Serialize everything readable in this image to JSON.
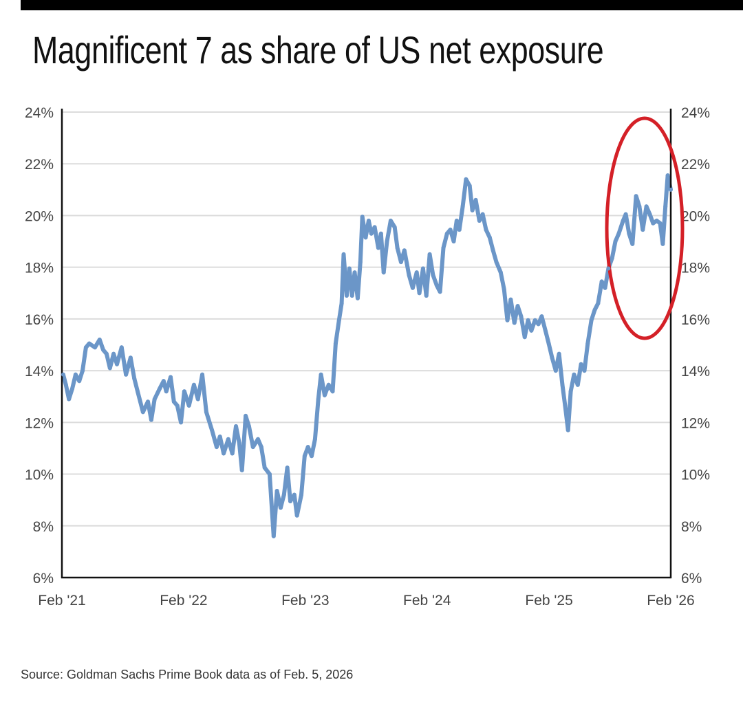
{
  "chart_data": {
    "type": "line",
    "title": "Magnificent 7 as share of US net exposure",
    "source": "Source: Goldman Sachs Prime Book data as of Feb. 5, 2026",
    "xlabel": "",
    "ylabel": "",
    "xlim": [
      "2021-02-05",
      "2026-02-05"
    ],
    "ylim": [
      6,
      24
    ],
    "y_ticks": [
      {
        "value": 24,
        "label": "24%"
      },
      {
        "value": 22,
        "label": "22%"
      },
      {
        "value": 20,
        "label": "20%"
      },
      {
        "value": 18,
        "label": "18%"
      },
      {
        "value": 16,
        "label": "16%"
      },
      {
        "value": 14,
        "label": "14%"
      },
      {
        "value": 12,
        "label": "12%"
      },
      {
        "value": 10,
        "label": "10%"
      },
      {
        "value": 8,
        "label": "8%"
      },
      {
        "value": 6,
        "label": "6%"
      }
    ],
    "x_ticks": [
      {
        "date": "2021-02-05",
        "label": "Feb '21"
      },
      {
        "date": "2022-02-05",
        "label": "Feb '22"
      },
      {
        "date": "2023-02-05",
        "label": "Feb '23"
      },
      {
        "date": "2024-02-05",
        "label": "Feb '24"
      },
      {
        "date": "2025-02-05",
        "label": "Feb '25"
      },
      {
        "date": "2026-02-05",
        "label": "Feb '26"
      }
    ],
    "grid": true,
    "dual_y_axis": true,
    "line_color": "#6b96c8",
    "annotation": {
      "shape": "ellipse",
      "color": "#d42027",
      "highlights": "recent highs late 2025 to Feb 2026"
    },
    "series": [
      {
        "values": [
          [
            "2021-02-09",
            13.85
          ],
          [
            "2021-02-17",
            13.45
          ],
          [
            "2021-02-26",
            12.9
          ],
          [
            "2021-03-08",
            13.3
          ],
          [
            "2021-03-18",
            13.85
          ],
          [
            "2021-03-29",
            13.6
          ],
          [
            "2021-04-08",
            14.0
          ],
          [
            "2021-04-18",
            14.9
          ],
          [
            "2021-04-28",
            15.05
          ],
          [
            "2021-05-15",
            14.9
          ],
          [
            "2021-05-29",
            15.2
          ],
          [
            "2021-06-09",
            14.8
          ],
          [
            "2021-06-19",
            14.65
          ],
          [
            "2021-06-29",
            14.1
          ],
          [
            "2021-07-10",
            14.65
          ],
          [
            "2021-07-20",
            14.25
          ],
          [
            "2021-08-03",
            14.9
          ],
          [
            "2021-08-16",
            13.85
          ],
          [
            "2021-08-30",
            14.5
          ],
          [
            "2021-09-10",
            13.7
          ],
          [
            "2021-09-20",
            13.2
          ],
          [
            "2021-10-06",
            12.4
          ],
          [
            "2021-10-21",
            12.8
          ],
          [
            "2021-10-31",
            12.1
          ],
          [
            "2021-11-10",
            12.9
          ],
          [
            "2021-11-25",
            13.3
          ],
          [
            "2021-12-07",
            13.6
          ],
          [
            "2021-12-15",
            13.2
          ],
          [
            "2021-12-28",
            13.75
          ],
          [
            "2022-01-07",
            12.8
          ],
          [
            "2022-01-17",
            12.65
          ],
          [
            "2022-01-28",
            12.0
          ],
          [
            "2022-02-07",
            13.2
          ],
          [
            "2022-02-21",
            12.65
          ],
          [
            "2022-03-08",
            13.45
          ],
          [
            "2022-03-20",
            12.9
          ],
          [
            "2022-04-02",
            13.85
          ],
          [
            "2022-04-14",
            12.4
          ],
          [
            "2022-05-01",
            11.7
          ],
          [
            "2022-05-15",
            11.05
          ],
          [
            "2022-05-25",
            11.45
          ],
          [
            "2022-06-05",
            10.8
          ],
          [
            "2022-06-19",
            11.35
          ],
          [
            "2022-07-01",
            10.8
          ],
          [
            "2022-07-12",
            11.85
          ],
          [
            "2022-07-22",
            11.2
          ],
          [
            "2022-07-30",
            10.15
          ],
          [
            "2022-08-10",
            12.25
          ],
          [
            "2022-08-20",
            11.85
          ],
          [
            "2022-09-01",
            11.05
          ],
          [
            "2022-09-16",
            11.35
          ],
          [
            "2022-09-26",
            11.05
          ],
          [
            "2022-10-06",
            10.25
          ],
          [
            "2022-10-21",
            10.0
          ],
          [
            "2022-11-02",
            7.6
          ],
          [
            "2022-11-12",
            9.35
          ],
          [
            "2022-11-23",
            8.7
          ],
          [
            "2022-12-03",
            9.2
          ],
          [
            "2022-12-13",
            10.25
          ],
          [
            "2022-12-22",
            8.95
          ],
          [
            "2023-01-03",
            9.2
          ],
          [
            "2023-01-11",
            8.4
          ],
          [
            "2023-01-24",
            9.2
          ],
          [
            "2023-02-03",
            10.7
          ],
          [
            "2023-02-13",
            11.05
          ],
          [
            "2023-02-24",
            10.7
          ],
          [
            "2023-03-06",
            11.35
          ],
          [
            "2023-03-16",
            12.9
          ],
          [
            "2023-03-24",
            13.85
          ],
          [
            "2023-04-04",
            13.05
          ],
          [
            "2023-04-16",
            13.45
          ],
          [
            "2023-04-28",
            13.2
          ],
          [
            "2023-05-07",
            15.05
          ],
          [
            "2023-05-17",
            15.95
          ],
          [
            "2023-05-25",
            16.6
          ],
          [
            "2023-05-31",
            18.5
          ],
          [
            "2023-06-09",
            16.9
          ],
          [
            "2023-06-17",
            17.95
          ],
          [
            "2023-06-25",
            16.9
          ],
          [
            "2023-07-03",
            17.8
          ],
          [
            "2023-07-12",
            16.8
          ],
          [
            "2023-07-20",
            18.2
          ],
          [
            "2023-07-26",
            19.95
          ],
          [
            "2023-08-05",
            19.15
          ],
          [
            "2023-08-14",
            19.8
          ],
          [
            "2023-08-22",
            19.3
          ],
          [
            "2023-09-01",
            19.55
          ],
          [
            "2023-09-12",
            18.75
          ],
          [
            "2023-09-20",
            19.3
          ],
          [
            "2023-09-28",
            17.8
          ],
          [
            "2023-10-08",
            19.0
          ],
          [
            "2023-10-19",
            19.8
          ],
          [
            "2023-10-31",
            19.55
          ],
          [
            "2023-11-08",
            18.75
          ],
          [
            "2023-11-19",
            18.2
          ],
          [
            "2023-11-29",
            18.65
          ],
          [
            "2023-12-13",
            17.7
          ],
          [
            "2023-12-24",
            17.2
          ],
          [
            "2024-01-05",
            17.8
          ],
          [
            "2024-01-13",
            17.0
          ],
          [
            "2024-01-24",
            17.95
          ],
          [
            "2024-02-03",
            16.9
          ],
          [
            "2024-02-13",
            18.5
          ],
          [
            "2024-02-23",
            17.7
          ],
          [
            "2024-03-05",
            17.3
          ],
          [
            "2024-03-15",
            17.05
          ],
          [
            "2024-03-25",
            18.75
          ],
          [
            "2024-04-05",
            19.3
          ],
          [
            "2024-04-15",
            19.45
          ],
          [
            "2024-04-25",
            19.0
          ],
          [
            "2024-05-04",
            19.8
          ],
          [
            "2024-05-12",
            19.45
          ],
          [
            "2024-05-22",
            20.35
          ],
          [
            "2024-06-01",
            21.4
          ],
          [
            "2024-06-12",
            21.15
          ],
          [
            "2024-06-20",
            20.2
          ],
          [
            "2024-06-30",
            20.6
          ],
          [
            "2024-07-11",
            19.8
          ],
          [
            "2024-07-21",
            20.05
          ],
          [
            "2024-07-31",
            19.45
          ],
          [
            "2024-08-11",
            19.15
          ],
          [
            "2024-08-21",
            18.65
          ],
          [
            "2024-08-31",
            18.2
          ],
          [
            "2024-09-13",
            17.8
          ],
          [
            "2024-09-23",
            17.15
          ],
          [
            "2024-10-03",
            15.95
          ],
          [
            "2024-10-13",
            16.75
          ],
          [
            "2024-10-24",
            15.85
          ],
          [
            "2024-11-03",
            16.5
          ],
          [
            "2024-11-13",
            16.1
          ],
          [
            "2024-11-24",
            15.3
          ],
          [
            "2024-12-04",
            15.95
          ],
          [
            "2024-12-14",
            15.55
          ],
          [
            "2024-12-25",
            15.95
          ],
          [
            "2025-01-04",
            15.8
          ],
          [
            "2025-01-14",
            16.1
          ],
          [
            "2025-01-25",
            15.55
          ],
          [
            "2025-02-04",
            15.05
          ],
          [
            "2025-02-14",
            14.5
          ],
          [
            "2025-02-25",
            14.0
          ],
          [
            "2025-03-07",
            14.65
          ],
          [
            "2025-03-17",
            13.45
          ],
          [
            "2025-03-25",
            12.65
          ],
          [
            "2025-04-03",
            11.7
          ],
          [
            "2025-04-11",
            13.2
          ],
          [
            "2025-04-21",
            13.85
          ],
          [
            "2025-05-02",
            13.45
          ],
          [
            "2025-05-12",
            14.25
          ],
          [
            "2025-05-22",
            14.0
          ],
          [
            "2025-06-01",
            15.05
          ],
          [
            "2025-06-12",
            15.95
          ],
          [
            "2025-06-22",
            16.35
          ],
          [
            "2025-07-02",
            16.6
          ],
          [
            "2025-07-13",
            17.45
          ],
          [
            "2025-07-23",
            17.2
          ],
          [
            "2025-08-02",
            17.95
          ],
          [
            "2025-08-13",
            18.35
          ],
          [
            "2025-08-23",
            19.0
          ],
          [
            "2025-09-02",
            19.3
          ],
          [
            "2025-09-15",
            19.8
          ],
          [
            "2025-09-23",
            20.05
          ],
          [
            "2025-10-03",
            19.3
          ],
          [
            "2025-10-13",
            18.9
          ],
          [
            "2025-10-24",
            20.75
          ],
          [
            "2025-11-03",
            20.35
          ],
          [
            "2025-11-13",
            19.45
          ],
          [
            "2025-11-24",
            20.35
          ],
          [
            "2025-12-04",
            20.05
          ],
          [
            "2025-12-14",
            19.7
          ],
          [
            "2025-12-25",
            19.8
          ],
          [
            "2026-01-04",
            19.7
          ],
          [
            "2026-01-12",
            18.9
          ],
          [
            "2026-01-20",
            20.35
          ],
          [
            "2026-01-27",
            21.55
          ],
          [
            "2026-02-05",
            21.0
          ]
        ]
      }
    ]
  }
}
